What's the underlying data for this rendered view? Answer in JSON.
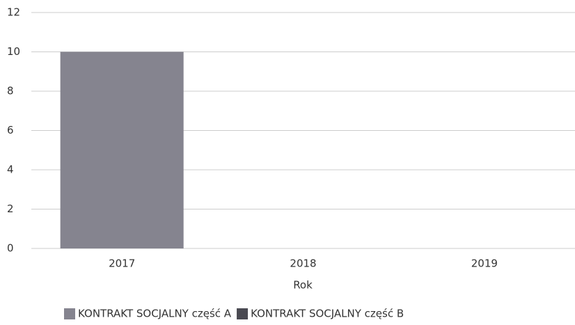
{
  "chart_data": {
    "type": "bar",
    "stacked": true,
    "categories": [
      "2017",
      "2018",
      "2019"
    ],
    "series": [
      {
        "name": "KONTRAKT SOCJALNY część A",
        "color": "#85848f",
        "values": [
          10,
          0,
          0
        ]
      },
      {
        "name": "KONTRAKT SOCJALNY część B",
        "color": "#4a4a52",
        "values": [
          0,
          0,
          0
        ]
      }
    ],
    "x_label": "Rok",
    "ylim": [
      0,
      12
    ],
    "yticks": [
      0,
      2,
      4,
      6,
      8,
      10,
      12
    ],
    "grid": true,
    "legend": "bottom"
  }
}
